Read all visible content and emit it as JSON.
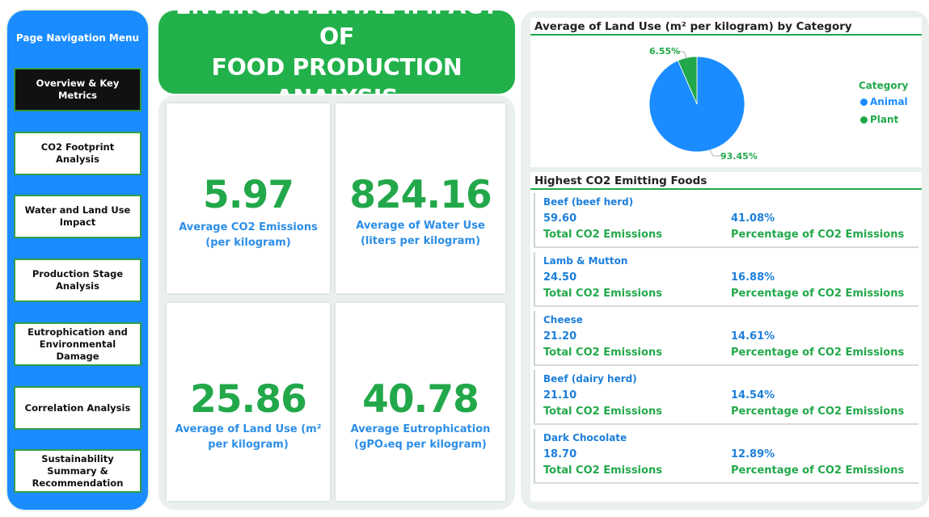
{
  "sidebar": {
    "title": "Page Navigation Menu",
    "items": [
      {
        "label": "Overview & Key Metrics",
        "active": true
      },
      {
        "label": "CO2 Footprint Analysis"
      },
      {
        "label": "Water and Land Use Impact"
      },
      {
        "label": "Production Stage Analysis"
      },
      {
        "label": "Eutrophication and Environmental Damage"
      },
      {
        "label": "Correlation Analysis"
      },
      {
        "label": "Sustainability Summary & Recommendation"
      }
    ]
  },
  "header": {
    "title_line1": "ENVIRONMENTAL IMPACT OF",
    "title_line2": "FOOD PRODUCTION ANALYSIS"
  },
  "kpis": [
    {
      "value": "5.97",
      "label_line1": "Average CO2 Emissions",
      "label_line2": "(per kilogram)"
    },
    {
      "value": "824.16",
      "label_line1": "Average of Water Use",
      "label_line2": "(liters per kilogram)"
    },
    {
      "value": "25.86",
      "label_line1": "Average of Land Use (m²",
      "label_line2": "per kilogram)"
    },
    {
      "value": "40.78",
      "label_line1": "Average Eutrophication",
      "label_line2": "(gPO₄eq per kilogram)"
    }
  ],
  "pie": {
    "heading": "Average of Land Use (m² per kilogram) by Category",
    "legend_title": "Category",
    "slices": [
      {
        "name": "Animal",
        "percent": 93.45,
        "label": "93.45%",
        "color": "#1a8cff"
      },
      {
        "name": "Plant",
        "percent": 6.55,
        "label": "6.55%",
        "color": "#22a84a"
      }
    ]
  },
  "emitters": {
    "heading": "Highest CO2 Emitting Foods",
    "value_caption": "Total CO2 Emissions",
    "percent_caption": "Percentage of CO2 Emissions",
    "items": [
      {
        "name": "Beef (beef herd)",
        "total": "59.60",
        "percent": "41.08%"
      },
      {
        "name": "Lamb & Mutton",
        "total": "24.50",
        "percent": "16.88%"
      },
      {
        "name": "Cheese",
        "total": "21.20",
        "percent": "14.61%"
      },
      {
        "name": "Beef (dairy herd)",
        "total": "21.10",
        "percent": "14.54%"
      },
      {
        "name": "Dark Chocolate",
        "total": "18.70",
        "percent": "12.89%"
      }
    ]
  }
}
